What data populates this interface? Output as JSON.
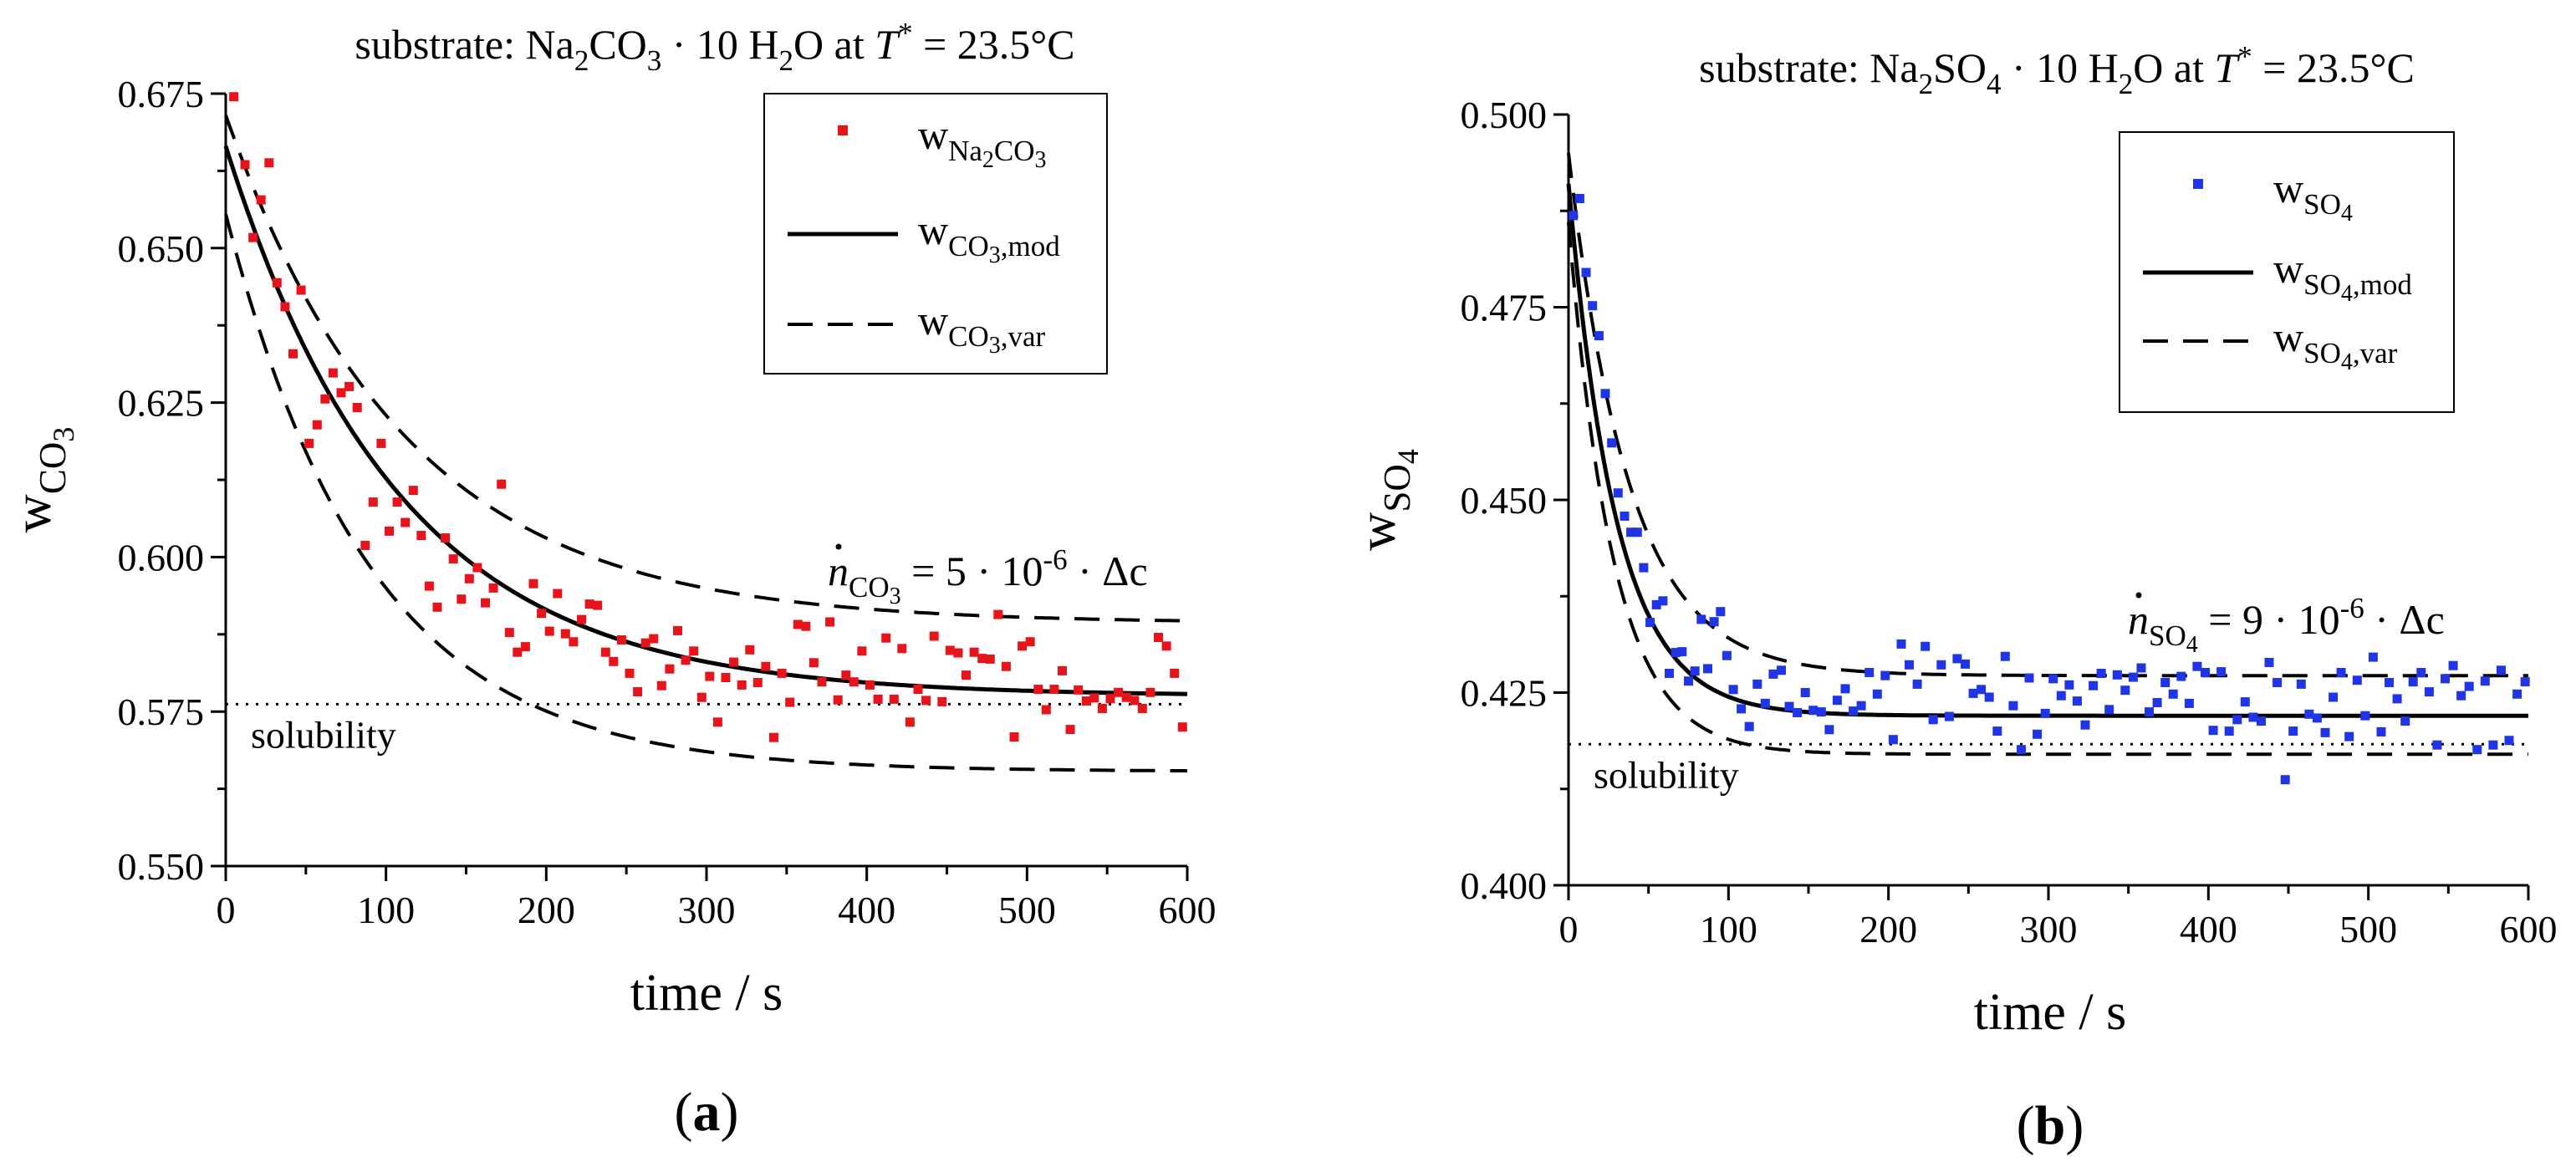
{
  "chart_data": [
    {
      "panel_label": "(a)",
      "type": "scatter",
      "title_parts": [
        {
          "t": "substrate: Na"
        },
        {
          "t": "2",
          "sub": true
        },
        {
          "t": "CO"
        },
        {
          "t": "3",
          "sub": true
        },
        {
          "t": " · 10 H"
        },
        {
          "t": "2",
          "sub": true
        },
        {
          "t": "O at "
        },
        {
          "t": "T",
          "italic": true
        },
        {
          "t": "*",
          "sup": true
        },
        {
          "t": " = 23.5°C"
        }
      ],
      "xlabel": "time / s",
      "ylabel_parts": [
        {
          "t": "w"
        },
        {
          "t": "CO",
          "sub": true
        },
        {
          "t": "3",
          "subsub": true
        }
      ],
      "xlim": [
        0,
        600
      ],
      "ylim": [
        0.55,
        0.675
      ],
      "xticks": [
        "0",
        "100",
        "200",
        "300",
        "400",
        "500",
        "600"
      ],
      "yticks": [
        "0.550",
        "0.575",
        "0.600",
        "0.625",
        "0.650",
        "0.675"
      ],
      "solubility": {
        "value": 0.5762,
        "label": "solubility"
      },
      "rate_label_parts": [
        {
          "t": "n",
          "italic": true,
          "dot": true
        },
        {
          "t": "CO",
          "sub": true
        },
        {
          "t": "3",
          "subsub": true
        },
        {
          "t": " = 5 · 10"
        },
        {
          "t": "-6",
          "sup": true
        },
        {
          "t": " · Δc"
        }
      ],
      "legend": [
        {
          "style": "marker",
          "parts": [
            {
              "t": "w"
            },
            {
              "t": "Na",
              "sub": true
            },
            {
              "t": "2",
              "subsub": true
            },
            {
              "t": "CO",
              "sub": true
            },
            {
              "t": "3",
              "subsub": true
            }
          ]
        },
        {
          "style": "solid",
          "parts": [
            {
              "t": "w"
            },
            {
              "t": "CO",
              "sub": true
            },
            {
              "t": "3",
              "subsub": true
            },
            {
              "t": ",mod",
              "sub": true
            }
          ]
        },
        {
          "style": "dashed",
          "parts": [
            {
              "t": "w"
            },
            {
              "t": "CO",
              "sub": true
            },
            {
              "t": "3",
              "subsub": true
            },
            {
              "t": ",var",
              "sub": true
            }
          ]
        }
      ],
      "model": {
        "w_end": 0.5775,
        "w0": 0.6665,
        "tau": 108
      },
      "bounds": [
        {
          "w_end": 0.5893,
          "w0": 0.6715,
          "tau": 112
        },
        {
          "w_end": 0.5653,
          "w0": 0.6555,
          "tau": 90
        }
      ],
      "series": [
        {
          "name": "w_Na2CO3",
          "color": "#e8141b",
          "x": [
            5,
            12,
            17,
            22,
            27,
            32,
            37,
            42,
            47,
            52,
            57,
            62,
            67,
            72,
            77,
            82,
            87,
            92,
            97,
            102,
            107,
            112,
            117,
            122,
            127,
            132,
            137,
            142,
            147,
            152,
            157,
            162,
            167,
            172,
            177,
            182,
            187,
            192,
            197,
            202,
            207,
            212,
            217,
            222,
            227,
            232,
            237,
            242,
            247,
            252,
            257,
            262,
            267,
            272,
            277,
            282,
            287,
            292,
            297,
            302,
            307,
            312,
            317,
            322,
            327,
            332,
            337,
            342,
            347,
            352,
            357,
            362,
            367,
            372,
            377,
            382,
            387,
            392,
            397,
            402,
            407,
            412,
            417,
            422,
            427,
            432,
            437,
            442,
            447,
            452,
            457,
            462,
            467,
            472,
            477,
            482,
            487,
            492,
            497,
            502,
            507,
            512,
            517,
            522,
            527,
            532,
            537,
            542,
            547,
            552,
            557,
            562,
            567,
            572,
            577,
            582,
            587,
            592,
            597
          ],
          "values": [
            0.6745,
            0.6635,
            0.6517,
            0.6578,
            0.6638,
            0.6444,
            0.6405,
            0.6329,
            0.6432,
            0.6184,
            0.6214,
            0.6256,
            0.6298,
            0.6266,
            0.6276,
            0.6242,
            0.6019,
            0.6089,
            0.6184,
            0.6042,
            0.6089,
            0.6056,
            0.6108,
            0.6035,
            0.5953,
            0.5919,
            0.6031,
            0.5997,
            0.5932,
            0.5965,
            0.5983,
            0.5926,
            0.595,
            0.6118,
            0.5878,
            0.5846,
            0.5855,
            0.5957,
            0.5909,
            0.588,
            0.5941,
            0.5876,
            0.5863,
            0.5899,
            0.5924,
            0.5922,
            0.5846,
            0.5831,
            0.5866,
            0.5812,
            0.5782,
            0.5861,
            0.5868,
            0.5792,
            0.5819,
            0.5881,
            0.5833,
            0.5848,
            0.5773,
            0.5807,
            0.5733,
            0.5805,
            0.583,
            0.5793,
            0.585,
            0.5797,
            0.5823,
            0.5708,
            0.5812,
            0.5765,
            0.5891,
            0.5888,
            0.5829,
            0.5798,
            0.5895,
            0.5769,
            0.5809,
            0.5798,
            0.5848,
            0.5793,
            0.577,
            0.5869,
            0.577,
            0.5852,
            0.5733,
            0.5786,
            0.5768,
            0.5872,
            0.5766,
            0.5849,
            0.5845,
            0.5809,
            0.5846,
            0.5836,
            0.5835,
            0.5907,
            0.5823,
            0.5709,
            0.5856,
            0.5863,
            0.5786,
            0.5753,
            0.5786,
            0.5816,
            0.5721,
            0.5785,
            0.5767,
            0.5772,
            0.5755,
            0.5771,
            0.5781,
            0.5773,
            0.5768,
            0.5755,
            0.5781,
            0.587,
            0.5856,
            0.5812,
            0.5725
          ]
        }
      ]
    },
    {
      "panel_label": "(b)",
      "type": "scatter",
      "title_parts": [
        {
          "t": "substrate: Na"
        },
        {
          "t": "2",
          "sub": true
        },
        {
          "t": "SO"
        },
        {
          "t": "4",
          "sub": true
        },
        {
          "t": " · 10 H"
        },
        {
          "t": "2",
          "sub": true
        },
        {
          "t": "O at "
        },
        {
          "t": "T",
          "italic": true
        },
        {
          "t": "*",
          "sup": true
        },
        {
          "t": " = 23.5°C"
        }
      ],
      "xlabel": "time / s",
      "ylabel_parts": [
        {
          "t": "w"
        },
        {
          "t": "SO",
          "sub": true
        },
        {
          "t": "4",
          "subsub": true
        }
      ],
      "xlim": [
        0,
        600
      ],
      "ylim": [
        0.4,
        0.5
      ],
      "xticks": [
        "0",
        "100",
        "200",
        "300",
        "400",
        "500",
        "600"
      ],
      "yticks": [
        "0.400",
        "0.425",
        "0.450",
        "0.475",
        "0.500"
      ],
      "solubility": {
        "value": 0.4183,
        "label": "solubility"
      },
      "rate_label_parts": [
        {
          "t": "n",
          "italic": true,
          "dot": true
        },
        {
          "t": "SO",
          "sub": true
        },
        {
          "t": "4",
          "subsub": true
        },
        {
          "t": " = 9 · 10"
        },
        {
          "t": "-6",
          "sup": true
        },
        {
          "t": " · Δc"
        }
      ],
      "legend": [
        {
          "style": "marker",
          "parts": [
            {
              "t": "w"
            },
            {
              "t": "SO",
              "sub": true
            },
            {
              "t": "4",
              "subsub": true
            }
          ]
        },
        {
          "style": "solid",
          "parts": [
            {
              "t": "w"
            },
            {
              "t": "SO",
              "sub": true
            },
            {
              "t": "4",
              "subsub": true
            },
            {
              "t": ",mod",
              "sub": true
            }
          ]
        },
        {
          "style": "dashed",
          "parts": [
            {
              "t": "w"
            },
            {
              "t": "SO",
              "sub": true
            },
            {
              "t": "4",
              "subsub": true
            },
            {
              "t": ",var",
              "sub": true
            }
          ]
        }
      ],
      "model": {
        "w_end": 0.422,
        "w0": 0.491,
        "tau": 30
      },
      "bounds": [
        {
          "w_end": 0.4272,
          "w0": 0.495,
          "tau": 38
        },
        {
          "w_end": 0.417,
          "w0": 0.486,
          "tau": 28
        }
      ],
      "series": [
        {
          "name": "w_SO4",
          "color": "#1f35e6",
          "x": [
            3,
            7,
            11,
            15,
            19,
            23,
            27,
            31,
            35,
            39,
            43,
            47,
            51,
            55,
            59,
            63,
            67,
            71,
            75,
            79,
            83,
            87,
            91,
            95,
            99,
            103,
            108,
            113,
            118,
            123,
            128,
            133,
            138,
            143,
            148,
            153,
            158,
            163,
            168,
            173,
            178,
            183,
            188,
            193,
            198,
            203,
            208,
            213,
            218,
            223,
            228,
            233,
            238,
            243,
            248,
            253,
            258,
            263,
            268,
            273,
            278,
            283,
            288,
            293,
            298,
            303,
            308,
            313,
            318,
            323,
            328,
            333,
            338,
            343,
            348,
            353,
            358,
            363,
            368,
            373,
            378,
            383,
            388,
            393,
            398,
            403,
            408,
            413,
            418,
            423,
            428,
            433,
            438,
            443,
            448,
            453,
            458,
            463,
            468,
            473,
            478,
            483,
            488,
            493,
            498,
            503,
            508,
            513,
            518,
            523,
            528,
            533,
            538,
            543,
            548,
            553,
            558,
            563,
            568,
            573,
            578,
            583,
            588,
            593,
            598
          ],
          "values": [
            0.4869,
            0.4891,
            0.4795,
            0.4752,
            0.4713,
            0.4638,
            0.4574,
            0.4509,
            0.4479,
            0.4458,
            0.4458,
            0.4412,
            0.4341,
            0.4364,
            0.4369,
            0.4275,
            0.4302,
            0.4303,
            0.4265,
            0.4278,
            0.4345,
            0.4281,
            0.4342,
            0.4355,
            0.4298,
            0.4254,
            0.4229,
            0.4206,
            0.4261,
            0.4236,
            0.4274,
            0.4279,
            0.4232,
            0.4224,
            0.425,
            0.4227,
            0.4225,
            0.4202,
            0.424,
            0.4255,
            0.4226,
            0.4233,
            0.4276,
            0.4248,
            0.4272,
            0.4189,
            0.4313,
            0.4286,
            0.4261,
            0.431,
            0.4215,
            0.4286,
            0.4219,
            0.4294,
            0.4287,
            0.4249,
            0.4254,
            0.4244,
            0.42,
            0.4297,
            0.4233,
            0.4176,
            0.4269,
            0.4196,
            0.4223,
            0.4268,
            0.4246,
            0.426,
            0.4239,
            0.4208,
            0.4259,
            0.4275,
            0.4228,
            0.4273,
            0.4253,
            0.427,
            0.4282,
            0.4225,
            0.4237,
            0.4263,
            0.4248,
            0.4271,
            0.4236,
            0.4284,
            0.4276,
            0.4201,
            0.4277,
            0.42,
            0.4215,
            0.4238,
            0.4218,
            0.4213,
            0.4289,
            0.4263,
            0.4137,
            0.42,
            0.4261,
            0.4222,
            0.4217,
            0.4198,
            0.4244,
            0.4276,
            0.4193,
            0.4266,
            0.422,
            0.4296,
            0.4199,
            0.4263,
            0.4242,
            0.4213,
            0.4264,
            0.4276,
            0.4251,
            0.4182,
            0.4268,
            0.4285,
            0.4246,
            0.4258,
            0.4176,
            0.4265,
            0.4182,
            0.4279,
            0.4188,
            0.4248,
            0.4264
          ]
        }
      ]
    }
  ]
}
